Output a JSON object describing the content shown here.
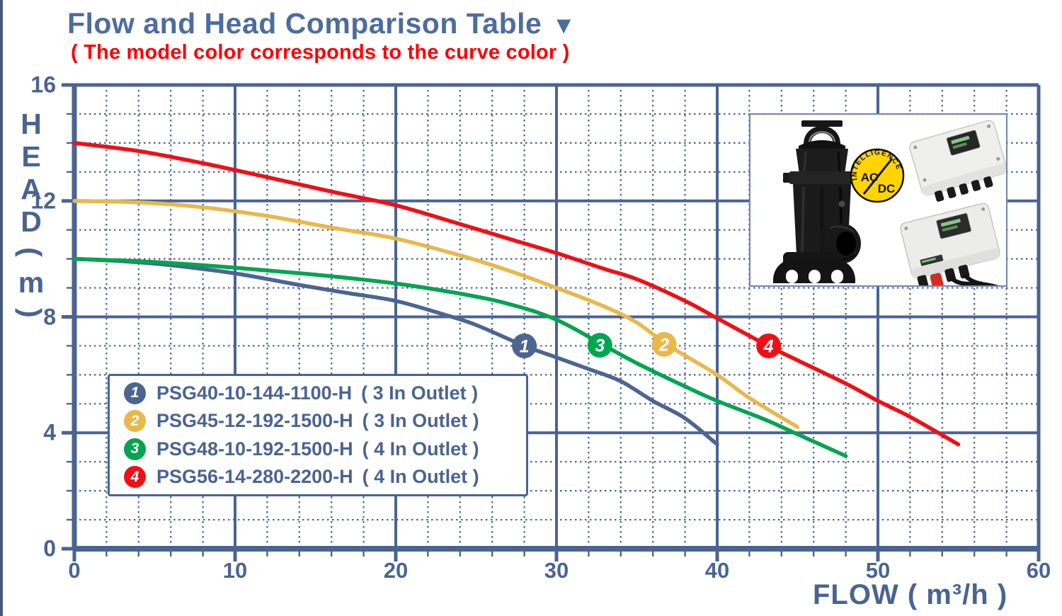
{
  "page": {
    "title": "Flow and Head Comparison Table",
    "title_triangle": "▼",
    "subtitle": "( The model color corresponds to the curve color )"
  },
  "chart_data": {
    "type": "line",
    "title": "Flow and Head Comparison Table",
    "xlabel": "FLOW ( m³/h )",
    "ylabel": "HEAD(m)",
    "xlim": [
      0,
      60
    ],
    "ylim": [
      0,
      16
    ],
    "x_ticks": [
      0,
      10,
      20,
      30,
      40,
      50,
      60
    ],
    "y_ticks": [
      0,
      4,
      8,
      12,
      16
    ],
    "x_minor_step": 2,
    "y_minor_step": 1,
    "grid": "major solid slate, minor dotted slate",
    "legend_position": "inside lower-left box",
    "axis_color": "#4A6491",
    "series": [
      {
        "num": "1",
        "name": "PSG40-10-144-1100-H",
        "outlet": "( 3 In Outlet )",
        "color": "#4C6591",
        "points": [
          [
            0,
            10
          ],
          [
            3,
            9.92
          ],
          [
            6,
            9.78
          ],
          [
            10,
            9.5
          ],
          [
            14,
            9.1
          ],
          [
            17,
            8.82
          ],
          [
            20,
            8.55
          ],
          [
            23,
            8.08
          ],
          [
            25,
            7.72
          ],
          [
            28,
            7.0
          ],
          [
            30,
            6.6
          ],
          [
            32,
            6.2
          ],
          [
            34,
            5.78
          ],
          [
            36,
            5.1
          ],
          [
            38,
            4.5
          ],
          [
            40,
            3.6
          ]
        ],
        "marker": [
          28,
          7.0
        ]
      },
      {
        "num": "2",
        "name": "PSG45-12-192-1500-H",
        "outlet": "( 3 In Outlet )",
        "color": "#E8B84B",
        "points": [
          [
            0,
            12
          ],
          [
            4,
            11.95
          ],
          [
            8,
            11.78
          ],
          [
            12,
            11.48
          ],
          [
            16,
            11.08
          ],
          [
            20,
            10.7
          ],
          [
            24,
            10.12
          ],
          [
            27,
            9.6
          ],
          [
            30,
            9.0
          ],
          [
            33,
            8.35
          ],
          [
            35,
            7.8
          ],
          [
            37,
            7.0
          ],
          [
            40,
            6.0
          ],
          [
            42,
            5.2
          ],
          [
            45,
            4.2
          ]
        ],
        "marker": [
          36.7,
          7.05
        ]
      },
      {
        "num": "3",
        "name": "PSG48-10-192-1500-H",
        "outlet": "( 4 In Outlet )",
        "color": "#00A550",
        "points": [
          [
            0,
            10
          ],
          [
            4,
            9.92
          ],
          [
            8,
            9.78
          ],
          [
            12,
            9.6
          ],
          [
            16,
            9.4
          ],
          [
            20,
            9.15
          ],
          [
            24,
            8.8
          ],
          [
            27,
            8.45
          ],
          [
            30,
            7.9
          ],
          [
            33,
            7.0
          ],
          [
            35,
            6.4
          ],
          [
            38,
            5.6
          ],
          [
            40,
            5.1
          ],
          [
            43,
            4.45
          ],
          [
            45,
            3.95
          ],
          [
            48,
            3.2
          ]
        ],
        "marker": [
          32.7,
          7.02
        ]
      },
      {
        "num": "4",
        "name": "PSG56-14-280-2200-H",
        "outlet": "( 4 In Outlet )",
        "color": "#EE1016",
        "points": [
          [
            0,
            14
          ],
          [
            4,
            13.72
          ],
          [
            8,
            13.3
          ],
          [
            12,
            12.82
          ],
          [
            16,
            12.32
          ],
          [
            20,
            11.85
          ],
          [
            24,
            11.2
          ],
          [
            27,
            10.7
          ],
          [
            30,
            10.2
          ],
          [
            33,
            9.65
          ],
          [
            35,
            9.3
          ],
          [
            38,
            8.55
          ],
          [
            40,
            7.95
          ],
          [
            43,
            7.05
          ],
          [
            45,
            6.5
          ],
          [
            48,
            5.7
          ],
          [
            50,
            5.1
          ],
          [
            52,
            4.55
          ],
          [
            55,
            3.6
          ]
        ],
        "marker": [
          43.2,
          7.0
        ]
      }
    ]
  },
  "legend": {
    "items": [
      {
        "num": "1",
        "label": "PSG40-10-144-1100-H",
        "outlet": "( 3 In Outlet )",
        "color": "#4C6591"
      },
      {
        "num": "2",
        "label": "PSG45-12-192-1500-H",
        "outlet": "( 3 In Outlet )",
        "color": "#E8B84B"
      },
      {
        "num": "3",
        "label": "PSG48-10-192-1500-H",
        "outlet": "( 4 In Outlet )",
        "color": "#00A550"
      },
      {
        "num": "4",
        "label": "PSG56-14-280-2200-H",
        "outlet": "( 4 In Outlet )",
        "color": "#EE1016"
      }
    ]
  },
  "product_panel": {
    "badge_arc_text": "INTELLIGENCE",
    "badge_ac": "AC",
    "badge_dc": "DC"
  }
}
